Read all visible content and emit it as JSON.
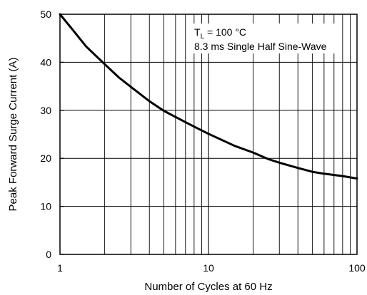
{
  "chart_data": {
    "type": "line",
    "x_scale": "log",
    "y_scale": "linear",
    "xlim": [
      1,
      100
    ],
    "ylim": [
      0,
      50
    ],
    "xlabel": "Number of Cycles at 60 Hz",
    "ylabel": "Peak Forward Surge Current (A)",
    "x_ticks": [
      {
        "value": 1,
        "label": "1"
      },
      {
        "value": 10,
        "label": "10"
      },
      {
        "value": 100,
        "label": "100"
      }
    ],
    "y_ticks": [
      {
        "value": 0,
        "label": "0"
      },
      {
        "value": 10,
        "label": "10"
      },
      {
        "value": 20,
        "label": "20"
      },
      {
        "value": 30,
        "label": "30"
      },
      {
        "value": 40,
        "label": "40"
      },
      {
        "value": 50,
        "label": "50"
      }
    ],
    "grid": true,
    "annotation": {
      "line1_main": "T",
      "line1_sub": "L",
      "line1_rest": " = 100 °C",
      "line2": "8.3 ms Single Half Sine-Wave"
    },
    "series": [
      {
        "x": [
          1,
          1.2,
          1.5,
          2,
          2.5,
          3,
          4,
          5,
          6,
          8,
          10,
          15,
          20,
          25,
          30,
          40,
          50,
          60,
          80,
          100
        ],
        "y": [
          50,
          47,
          43.3,
          39.6,
          36.8,
          34.9,
          31.9,
          29.9,
          28.6,
          26.6,
          25.1,
          22.6,
          21.2,
          19.9,
          19.1,
          18.0,
          17.2,
          16.8,
          16.3,
          15.8
        ]
      }
    ]
  }
}
